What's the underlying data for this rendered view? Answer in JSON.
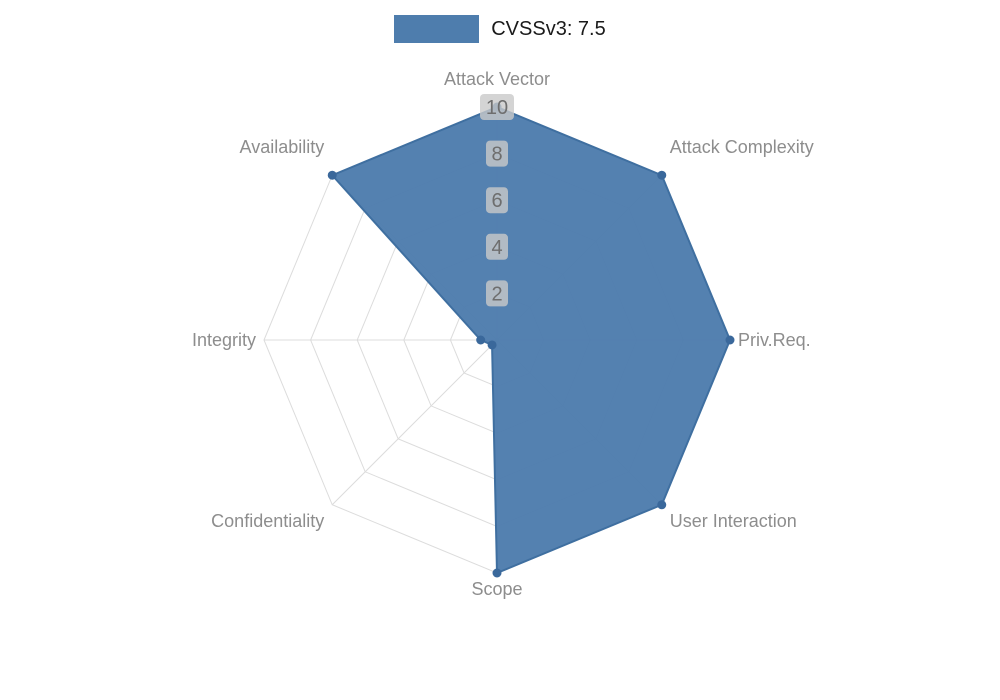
{
  "legend": {
    "swatch_color": "#4e7dad"
  },
  "chart_data": {
    "type": "radar",
    "title": "",
    "legend_position": "top",
    "grid": true,
    "grid_shape": "polygon",
    "categories": [
      "Attack Vector",
      "Attack Complexity",
      "Priv.Req.",
      "User Interaction",
      "Scope",
      "Confidentiality",
      "Integrity",
      "Availability"
    ],
    "series": [
      {
        "name": "CVSSv3: 7.5",
        "values": [
          10,
          10,
          10,
          10,
          10,
          0.3,
          0.7,
          10
        ]
      }
    ],
    "r_axis": {
      "min": 0,
      "max": 10,
      "ticks": [
        2,
        4,
        6,
        8,
        10
      ]
    },
    "colors": {
      "fill": "#4e7dad",
      "stroke": "#3f6fa0",
      "marker": "#3a689b",
      "grid": "#dcdcdc",
      "axis_label": "#8d8d8d",
      "tick_text": "#6e6e6e",
      "tick_bg": "#c9c9c9",
      "legend_text": "#1a1a1a"
    }
  }
}
